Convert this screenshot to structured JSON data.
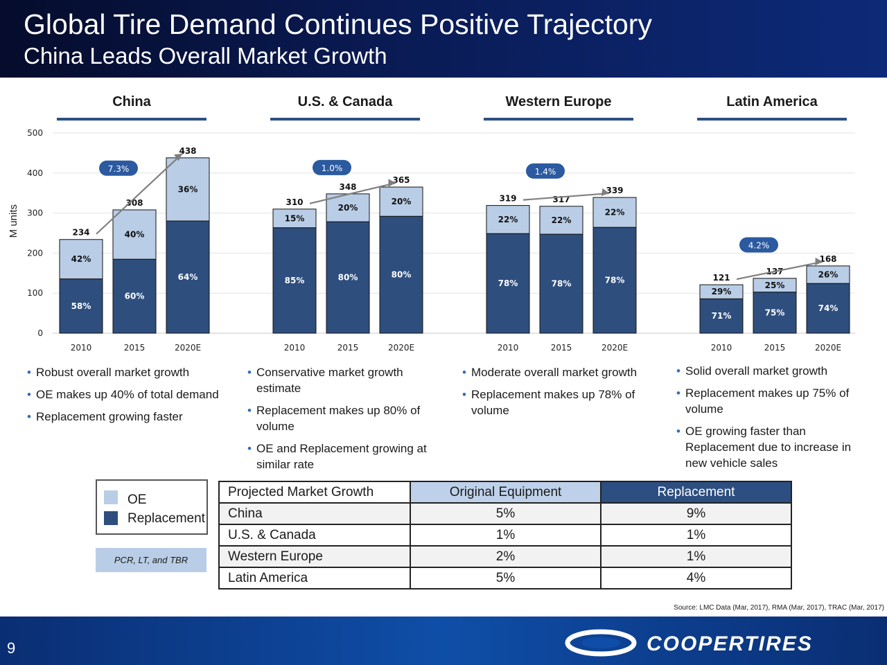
{
  "header": {
    "title": "Global Tire Demand Continues Positive Trajectory",
    "subtitle": "China Leads Overall Market Growth"
  },
  "regions": [
    "China",
    "U.S. & Canada",
    "Western Europe",
    "Latin America"
  ],
  "chart_data": {
    "type": "bar",
    "stacked": true,
    "ylabel": "M units",
    "ylim": [
      0,
      500
    ],
    "yticks": [
      0,
      100,
      200,
      300,
      400,
      500
    ],
    "grid": true,
    "colors": {
      "oe": "#b9cde6",
      "replacement": "#2e4e7e"
    },
    "groups": [
      {
        "region": "China",
        "cagr": "7.3%",
        "bars": [
          {
            "year": "2010",
            "total": 234,
            "replacement_pct": 58,
            "oe_pct": 42,
            "replacement_label": "58%",
            "oe_label": "42%"
          },
          {
            "year": "2015",
            "total": 308,
            "replacement_pct": 60,
            "oe_pct": 40,
            "replacement_label": "60%",
            "oe_label": "40%"
          },
          {
            "year": "2020E",
            "total": 438,
            "replacement_pct": 64,
            "oe_pct": 36,
            "replacement_label": "64%",
            "oe_label": "36%"
          }
        ]
      },
      {
        "region": "U.S. & Canada",
        "cagr": "1.0%",
        "bars": [
          {
            "year": "2010",
            "total": 310,
            "replacement_pct": 85,
            "oe_pct": 15,
            "replacement_label": "85%",
            "oe_label": "15%"
          },
          {
            "year": "2015",
            "total": 348,
            "replacement_pct": 80,
            "oe_pct": 20,
            "replacement_label": "80%",
            "oe_label": "20%"
          },
          {
            "year": "2020E",
            "total": 365,
            "replacement_pct": 80,
            "oe_pct": 20,
            "replacement_label": "80%",
            "oe_label": "20%"
          }
        ]
      },
      {
        "region": "Western Europe",
        "cagr": "1.4%",
        "bars": [
          {
            "year": "2010",
            "total": 319,
            "replacement_pct": 78,
            "oe_pct": 22,
            "replacement_label": "78%",
            "oe_label": "22%"
          },
          {
            "year": "2015",
            "total": 317,
            "replacement_pct": 78,
            "oe_pct": 22,
            "replacement_label": "78%",
            "oe_label": "22%"
          },
          {
            "year": "2020E",
            "total": 339,
            "replacement_pct": 78,
            "oe_pct": 22,
            "replacement_label": "78%",
            "oe_label": "22%"
          }
        ]
      },
      {
        "region": "Latin America",
        "cagr": "4.2%",
        "bars": [
          {
            "year": "2010",
            "total": 121,
            "replacement_pct": 71,
            "oe_pct": 29,
            "replacement_label": "71%",
            "oe_label": "29%"
          },
          {
            "year": "2015",
            "total": 137,
            "replacement_pct": 75,
            "oe_pct": 25,
            "replacement_label": "75%",
            "oe_label": "25%"
          },
          {
            "year": "2020E",
            "total": 168,
            "replacement_pct": 74,
            "oe_pct": 26,
            "replacement_label": "74%",
            "oe_label": "26%"
          }
        ]
      }
    ]
  },
  "bullets": {
    "china": [
      "Robust overall market growth",
      "OE makes up 40% of total demand",
      "Replacement growing faster"
    ],
    "us": [
      "Conservative market growth estimate",
      "Replacement makes up 80% of volume",
      "OE and Replacement growing at similar rate"
    ],
    "we": [
      "Moderate overall market growth",
      "Replacement makes up 78% of volume"
    ],
    "la": [
      "Solid overall market growth",
      "Replacement makes up 75% of volume",
      "OE growing faster than Replacement due to increase in new vehicle sales"
    ]
  },
  "legend": {
    "oe": "OE",
    "replacement": "Replacement",
    "note": "PCR, LT, and TBR"
  },
  "growth_table": {
    "headers": [
      "Projected Market Growth",
      "Original Equipment",
      "Replacement"
    ],
    "rows": [
      {
        "region": "China",
        "oe": "5%",
        "replacement": "9%"
      },
      {
        "region": "U.S. & Canada",
        "oe": "1%",
        "replacement": "1%"
      },
      {
        "region": "Western Europe",
        "oe": "2%",
        "replacement": "1%"
      },
      {
        "region": "Latin America",
        "oe": "5%",
        "replacement": "4%"
      }
    ]
  },
  "source": "Source: LMC Data (Mar, 2017), RMA (Mar, 2017), TRAC (Mar, 2017)",
  "page_number": "9",
  "brand": "COOPERTIRES"
}
